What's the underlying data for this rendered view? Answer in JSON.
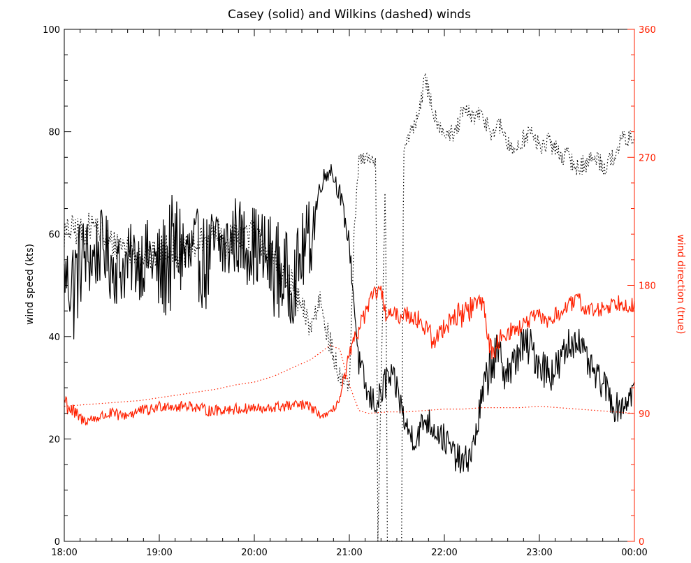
{
  "chart_data": {
    "type": "line",
    "title": "Casey (solid) and Wilkins (dashed) winds",
    "ylabel_left": "wind speed (kts)",
    "ylabel_right": "wind direction (true)",
    "xlabel": "",
    "xlim_hours": [
      18,
      24
    ],
    "ylim_left": [
      0,
      100
    ],
    "ylim_right": [
      0,
      360
    ],
    "x_ticks": [
      18,
      19,
      20,
      21,
      22,
      23,
      24
    ],
    "x_tick_labels": [
      "18:00",
      "19:00",
      "20:00",
      "21:00",
      "22:00",
      "23:00",
      "00:00"
    ],
    "y_left_ticks": [
      0,
      20,
      40,
      60,
      80,
      100
    ],
    "y_left_tick_labels": [
      "0",
      "20",
      "40",
      "60",
      "80",
      "100"
    ],
    "y_right_ticks": [
      0,
      90,
      180,
      270,
      360
    ],
    "y_right_tick_labels": [
      "0",
      "90",
      "180",
      "270",
      "360"
    ],
    "colors": {
      "speed": "#000000",
      "direction": "#ff2000"
    },
    "series": [
      {
        "axis": "left",
        "style": "solid",
        "color": "#000000",
        "x": [
          18.0,
          18.1,
          18.2,
          18.3,
          18.4,
          18.5,
          18.6,
          18.7,
          18.8,
          18.9,
          19.0,
          19.1,
          19.2,
          19.3,
          19.4,
          19.5,
          19.6,
          19.7,
          19.8,
          19.9,
          20.0,
          20.1,
          20.2,
          20.3,
          20.4,
          20.5,
          20.6,
          20.7,
          20.8,
          20.9,
          21.0,
          21.1,
          21.2,
          21.3,
          21.4,
          21.5,
          21.6,
          21.7,
          21.8,
          21.9,
          22.0,
          22.1,
          22.2,
          22.3,
          22.4,
          22.5,
          22.6,
          22.7,
          22.8,
          22.9,
          23.0,
          23.1,
          23.2,
          23.3,
          23.4,
          23.5,
          23.6,
          23.7,
          23.8,
          23.9,
          24.0
        ],
        "values": [
          52,
          50,
          56,
          55,
          58,
          54,
          53,
          55,
          55,
          56,
          52,
          55,
          58,
          55,
          56,
          54,
          58,
          57,
          60,
          58,
          58,
          56,
          54,
          52,
          50,
          56,
          60,
          70,
          73,
          68,
          58,
          35,
          28,
          27,
          32,
          30,
          22,
          20,
          24,
          22,
          20,
          17,
          15,
          18,
          28,
          36,
          35,
          33,
          38,
          38,
          35,
          33,
          34,
          38,
          40,
          35,
          32,
          30,
          26,
          27,
          30
        ],
        "amplitude": [
          5,
          12,
          8,
          8,
          7,
          8,
          7,
          7,
          8,
          7,
          10,
          12,
          11,
          10,
          9,
          10,
          9,
          8,
          8,
          8,
          8,
          9,
          10,
          10,
          8,
          8,
          8,
          2,
          2,
          2,
          2,
          3,
          3,
          3,
          4,
          3,
          3,
          3,
          3,
          3,
          3,
          3,
          3,
          3,
          4,
          5,
          5,
          4,
          4,
          4,
          4,
          4,
          4,
          4,
          3,
          3,
          3,
          3,
          3,
          3,
          3
        ]
      },
      {
        "axis": "left",
        "style": "dashed",
        "color": "#000000",
        "x": [
          18.0,
          18.1,
          18.2,
          18.3,
          18.4,
          18.5,
          18.6,
          18.7,
          18.8,
          18.9,
          19.0,
          19.1,
          19.2,
          19.3,
          19.4,
          19.5,
          19.6,
          19.7,
          19.8,
          19.9,
          20.0,
          20.1,
          20.2,
          20.3,
          20.4,
          20.5,
          20.6,
          20.7,
          20.8,
          20.9,
          21.0,
          21.05,
          21.1,
          21.2,
          21.28,
          21.3,
          21.38,
          21.4,
          21.5,
          21.55,
          21.57,
          21.6,
          21.7,
          21.8,
          21.9,
          22.0,
          22.1,
          22.2,
          22.3,
          22.4,
          22.5,
          22.6,
          22.7,
          22.8,
          22.9,
          23.0,
          23.1,
          23.2,
          23.3,
          23.4,
          23.5,
          23.6,
          23.7,
          23.8,
          23.9,
          24.0
        ],
        "values": [
          60,
          61,
          60,
          62,
          60,
          58,
          58,
          57,
          56,
          55,
          57,
          58,
          56,
          57,
          58,
          59,
          60,
          58,
          60,
          60,
          60,
          58,
          55,
          52,
          50,
          45,
          42,
          48,
          38,
          32,
          30,
          60,
          74,
          75,
          74,
          0,
          72,
          0,
          0,
          0,
          76,
          78,
          82,
          90,
          83,
          80,
          79,
          84,
          83,
          83,
          80,
          81,
          76,
          78,
          80,
          77,
          78,
          76,
          75,
          73,
          74,
          75,
          73,
          76,
          79,
          78
        ],
        "amplitude": [
          3,
          3,
          3,
          3,
          3,
          3,
          3,
          3,
          3,
          3,
          3,
          3,
          3,
          3,
          3,
          3,
          3,
          3,
          3,
          3,
          3,
          3,
          3,
          3,
          3,
          3,
          3,
          3,
          3,
          3,
          1,
          1,
          2,
          1,
          1,
          0,
          1,
          0,
          0,
          0,
          1,
          1,
          2,
          2,
          2,
          2,
          2,
          2,
          2,
          2,
          2,
          2,
          2,
          2,
          2,
          2,
          2,
          2,
          2,
          2,
          2,
          2,
          2,
          2,
          2,
          2
        ]
      },
      {
        "axis": "right",
        "style": "solid",
        "color": "#ff2000",
        "x": [
          18.0,
          18.1,
          18.2,
          18.3,
          18.4,
          18.5,
          18.6,
          18.7,
          18.8,
          18.9,
          19.0,
          19.1,
          19.2,
          19.3,
          19.4,
          19.5,
          19.6,
          19.7,
          19.8,
          19.9,
          20.0,
          20.1,
          20.2,
          20.3,
          20.4,
          20.5,
          20.6,
          20.7,
          20.8,
          20.9,
          21.0,
          21.1,
          21.2,
          21.3,
          21.4,
          21.5,
          21.6,
          21.7,
          21.8,
          21.9,
          22.0,
          22.1,
          22.2,
          22.3,
          22.4,
          22.5,
          22.6,
          22.7,
          22.8,
          22.9,
          23.0,
          23.1,
          23.2,
          23.3,
          23.4,
          23.5,
          23.6,
          23.7,
          23.8,
          23.9,
          24.0
        ],
        "values": [
          100,
          90,
          85,
          86,
          88,
          90,
          88,
          90,
          92,
          92,
          95,
          96,
          94,
          96,
          94,
          92,
          92,
          93,
          93,
          93,
          94,
          92,
          94,
          95,
          95,
          96,
          94,
          88,
          90,
          100,
          130,
          150,
          165,
          178,
          160,
          158,
          160,
          158,
          150,
          140,
          152,
          158,
          160,
          165,
          170,
          130,
          145,
          148,
          150,
          156,
          158,
          155,
          160,
          165,
          170,
          163,
          162,
          165,
          168,
          168,
          165
        ],
        "amplitude": [
          10,
          6,
          4,
          4,
          4,
          4,
          4,
          5,
          4,
          4,
          4,
          4,
          4,
          4,
          4,
          4,
          4,
          4,
          4,
          4,
          4,
          4,
          4,
          4,
          4,
          4,
          4,
          2,
          2,
          4,
          6,
          6,
          6,
          8,
          8,
          6,
          6,
          8,
          8,
          8,
          8,
          8,
          10,
          10,
          8,
          8,
          6,
          6,
          6,
          6,
          6,
          6,
          6,
          6,
          6,
          6,
          6,
          6,
          6,
          6,
          6
        ]
      },
      {
        "axis": "right",
        "style": "dashed",
        "color": "#ff2000",
        "x": [
          18.0,
          18.2,
          18.4,
          18.6,
          18.8,
          19.0,
          19.2,
          19.4,
          19.6,
          19.8,
          20.0,
          20.2,
          20.4,
          20.6,
          20.8,
          20.9,
          21.0,
          21.1,
          21.2,
          21.4,
          21.6,
          21.8,
          22.0,
          22.2,
          22.4,
          22.6,
          22.8,
          23.0,
          23.2,
          23.4,
          23.6,
          23.8,
          24.0
        ],
        "values": [
          95,
          96,
          97,
          98,
          99,
          101,
          103,
          105,
          107,
          110,
          112,
          116,
          122,
          128,
          138,
          135,
          110,
          92,
          90,
          91,
          91,
          92,
          93,
          93,
          94,
          94,
          94,
          95,
          94,
          93,
          92,
          91,
          90
        ],
        "amplitude": [
          0,
          0,
          0,
          0,
          0,
          0,
          0,
          0,
          0,
          0,
          0,
          0,
          0,
          0,
          0,
          0,
          0,
          0,
          0,
          0,
          0,
          0,
          0,
          0,
          0,
          0,
          0,
          0,
          0,
          0,
          0,
          0,
          0
        ]
      }
    ]
  }
}
